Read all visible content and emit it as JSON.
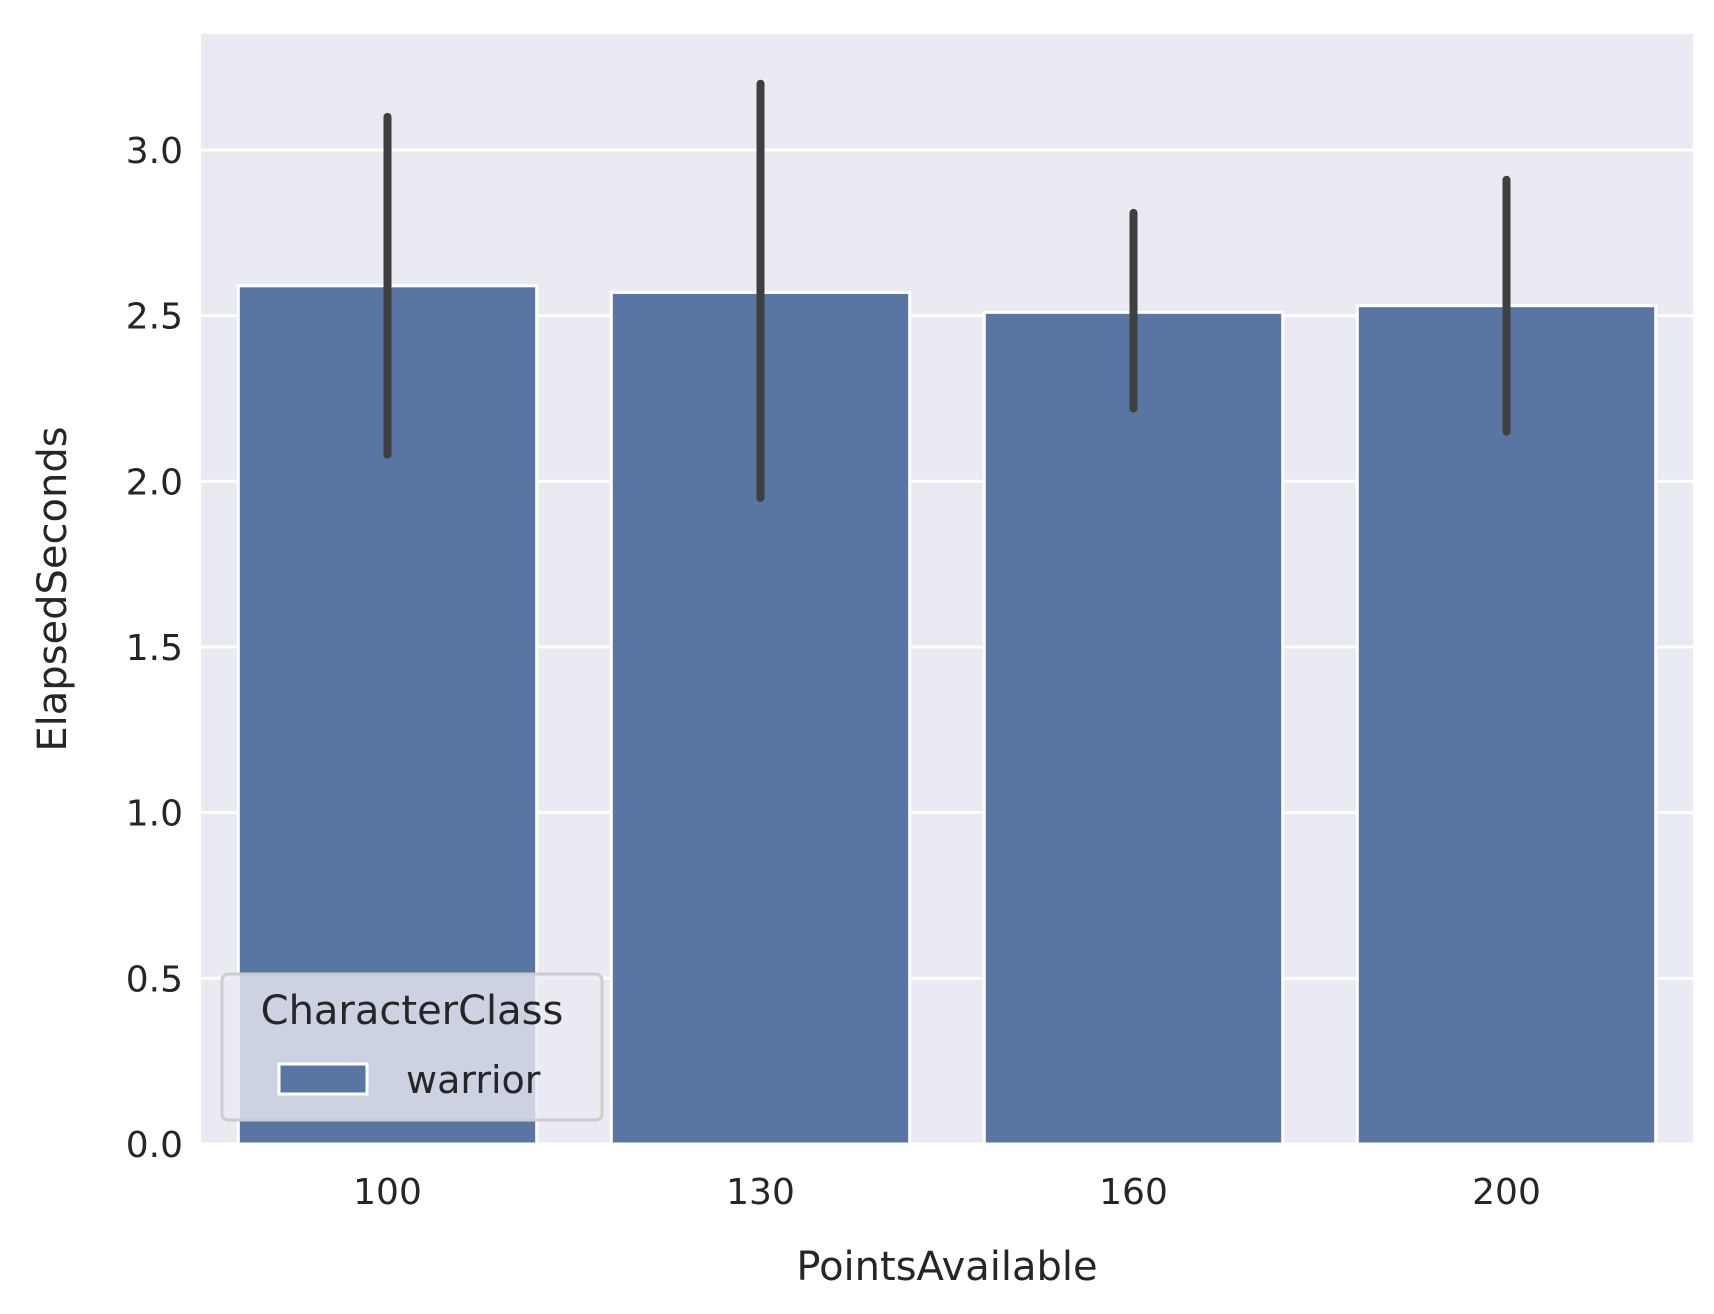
{
  "chart_data": {
    "type": "bar",
    "xlabel": "PointsAvailable",
    "ylabel": "ElapsedSeconds",
    "categories": [
      "100",
      "130",
      "160",
      "200"
    ],
    "series": [
      {
        "name": "warrior",
        "values": [
          2.59,
          2.57,
          2.51,
          2.53
        ],
        "ci_low": [
          2.08,
          1.95,
          2.22,
          2.15
        ],
        "ci_high": [
          3.1,
          3.2,
          2.81,
          2.91
        ]
      }
    ],
    "ylim": [
      0,
      3.35
    ],
    "yticks": [
      "0.0",
      "0.5",
      "1.0",
      "1.5",
      "2.0",
      "2.5",
      "3.0"
    ],
    "grid": true,
    "legend": {
      "title": "CharacterClass",
      "placement": "lower-left"
    },
    "colors": {
      "bar": "#5975a4",
      "background": "#eaeaf2",
      "grid": "#ffffff",
      "errorbar": "#3f3f3f"
    }
  }
}
